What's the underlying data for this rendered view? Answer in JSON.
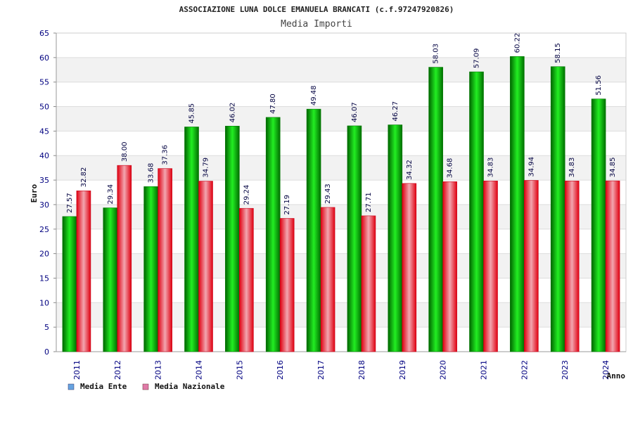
{
  "chart_data": {
    "type": "bar",
    "title": "ASSOCIAZIONE LUNA DOLCE EMANUELA BRANCATI (c.f.97247920826)",
    "subtitle": "Media Importi",
    "xlabel": "Anno",
    "ylabel": "Euro",
    "ylim": [
      0,
      65
    ],
    "yticks": [
      0,
      5,
      10,
      15,
      20,
      25,
      30,
      35,
      40,
      45,
      50,
      55,
      60,
      65
    ],
    "grid": true,
    "legend_position": "bottom-left",
    "categories": [
      "2011",
      "2012",
      "2013",
      "2014",
      "2015",
      "2016",
      "2017",
      "2018",
      "2019",
      "2020",
      "2021",
      "2022",
      "2023",
      "2024"
    ],
    "series": [
      {
        "name": "Media Ente",
        "color": "#00a000",
        "legend_color": "#66a3e0",
        "values": [
          27.57,
          29.34,
          33.68,
          45.85,
          46.02,
          47.8,
          49.48,
          46.07,
          46.27,
          58.03,
          57.09,
          60.22,
          58.15,
          51.56
        ],
        "labels": [
          "27.57",
          "29.34",
          "33.68",
          "45.85",
          "46.02",
          "47.80",
          "49.48",
          "46.07",
          "46.27",
          "58.03",
          "57.09",
          "60.22",
          "58.15",
          "51.56"
        ]
      },
      {
        "name": "Media Nazionale",
        "color": "#e8102a",
        "legend_color": "#e07aa8",
        "values": [
          32.82,
          38.0,
          37.36,
          34.79,
          29.24,
          27.19,
          29.43,
          27.71,
          34.32,
          34.68,
          34.83,
          34.94,
          34.83,
          34.85
        ],
        "labels": [
          "32.82",
          "38.00",
          "37.36",
          "34.79",
          "29.24",
          "27.19",
          "29.43",
          "27.71",
          "34.32",
          "34.68",
          "34.83",
          "34.94",
          "34.83",
          "34.85"
        ]
      }
    ]
  }
}
